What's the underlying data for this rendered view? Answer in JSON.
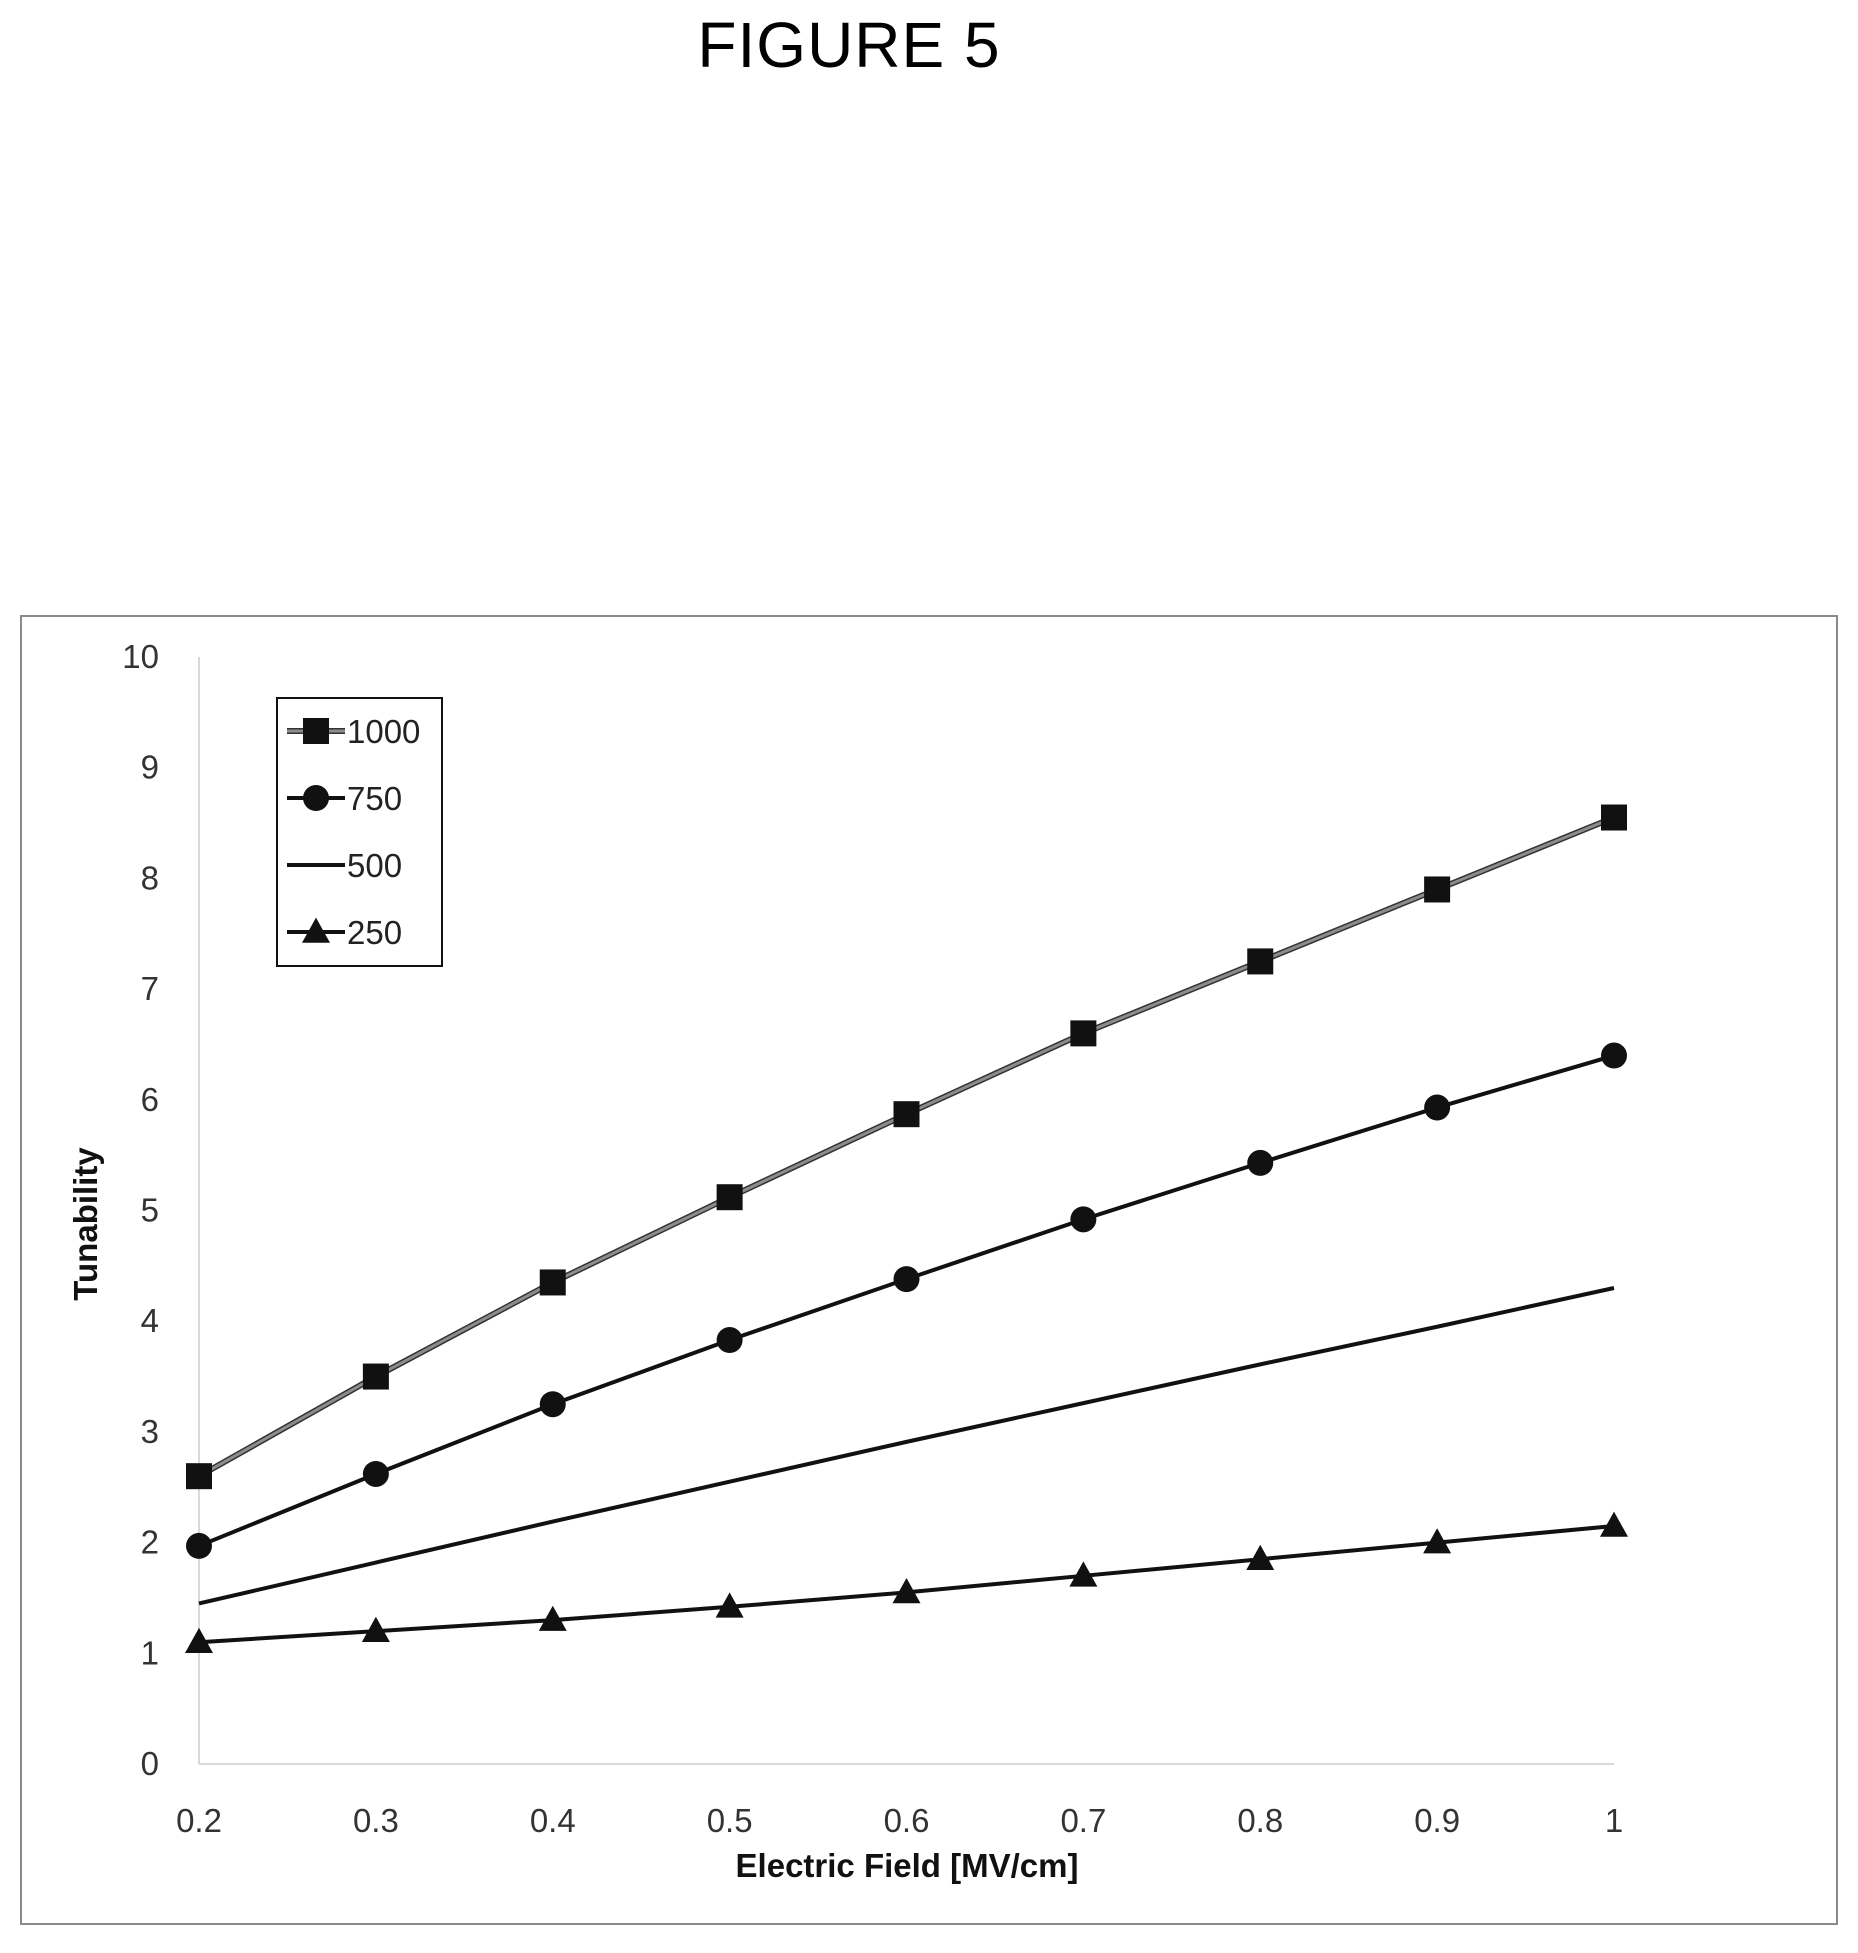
{
  "figure": {
    "label": "FIGURE 5"
  },
  "chart_data": {
    "type": "line",
    "title": "",
    "xlabel": "Electric Field [MV/cm]",
    "ylabel": "Tunability",
    "x": [
      0.2,
      0.3,
      0.4,
      0.5,
      0.6,
      0.7,
      0.8,
      0.9,
      1
    ],
    "x_tick_labels": [
      "0.2",
      "0.3",
      "0.4",
      "0.5",
      "0.6",
      "0.7",
      "0.8",
      "0.9",
      "1"
    ],
    "y_tick_labels": [
      "0",
      "1",
      "2",
      "3",
      "4",
      "5",
      "6",
      "7",
      "8",
      "9",
      "10"
    ],
    "xlim": [
      0.2,
      1
    ],
    "ylim": [
      0,
      10
    ],
    "grid": false,
    "legend_position": "top-left",
    "series": [
      {
        "name": "1000",
        "marker": "square",
        "color": "#8c8c8c",
        "values": [
          2.6,
          3.5,
          4.35,
          5.12,
          5.87,
          6.6,
          7.25,
          7.9,
          8.55
        ]
      },
      {
        "name": "750",
        "marker": "circle",
        "color": "#111111",
        "values": [
          1.97,
          2.62,
          3.25,
          3.83,
          4.38,
          4.92,
          5.43,
          5.93,
          6.4
        ]
      },
      {
        "name": "500",
        "marker": "none",
        "color": "#111111",
        "values": [
          1.45,
          1.82,
          2.19,
          2.55,
          2.91,
          3.26,
          3.61,
          3.95,
          4.3
        ]
      },
      {
        "name": "250",
        "marker": "triangle",
        "color": "#111111",
        "values": [
          1.1,
          1.2,
          1.3,
          1.42,
          1.55,
          1.7,
          1.85,
          2.0,
          2.15
        ]
      }
    ]
  }
}
